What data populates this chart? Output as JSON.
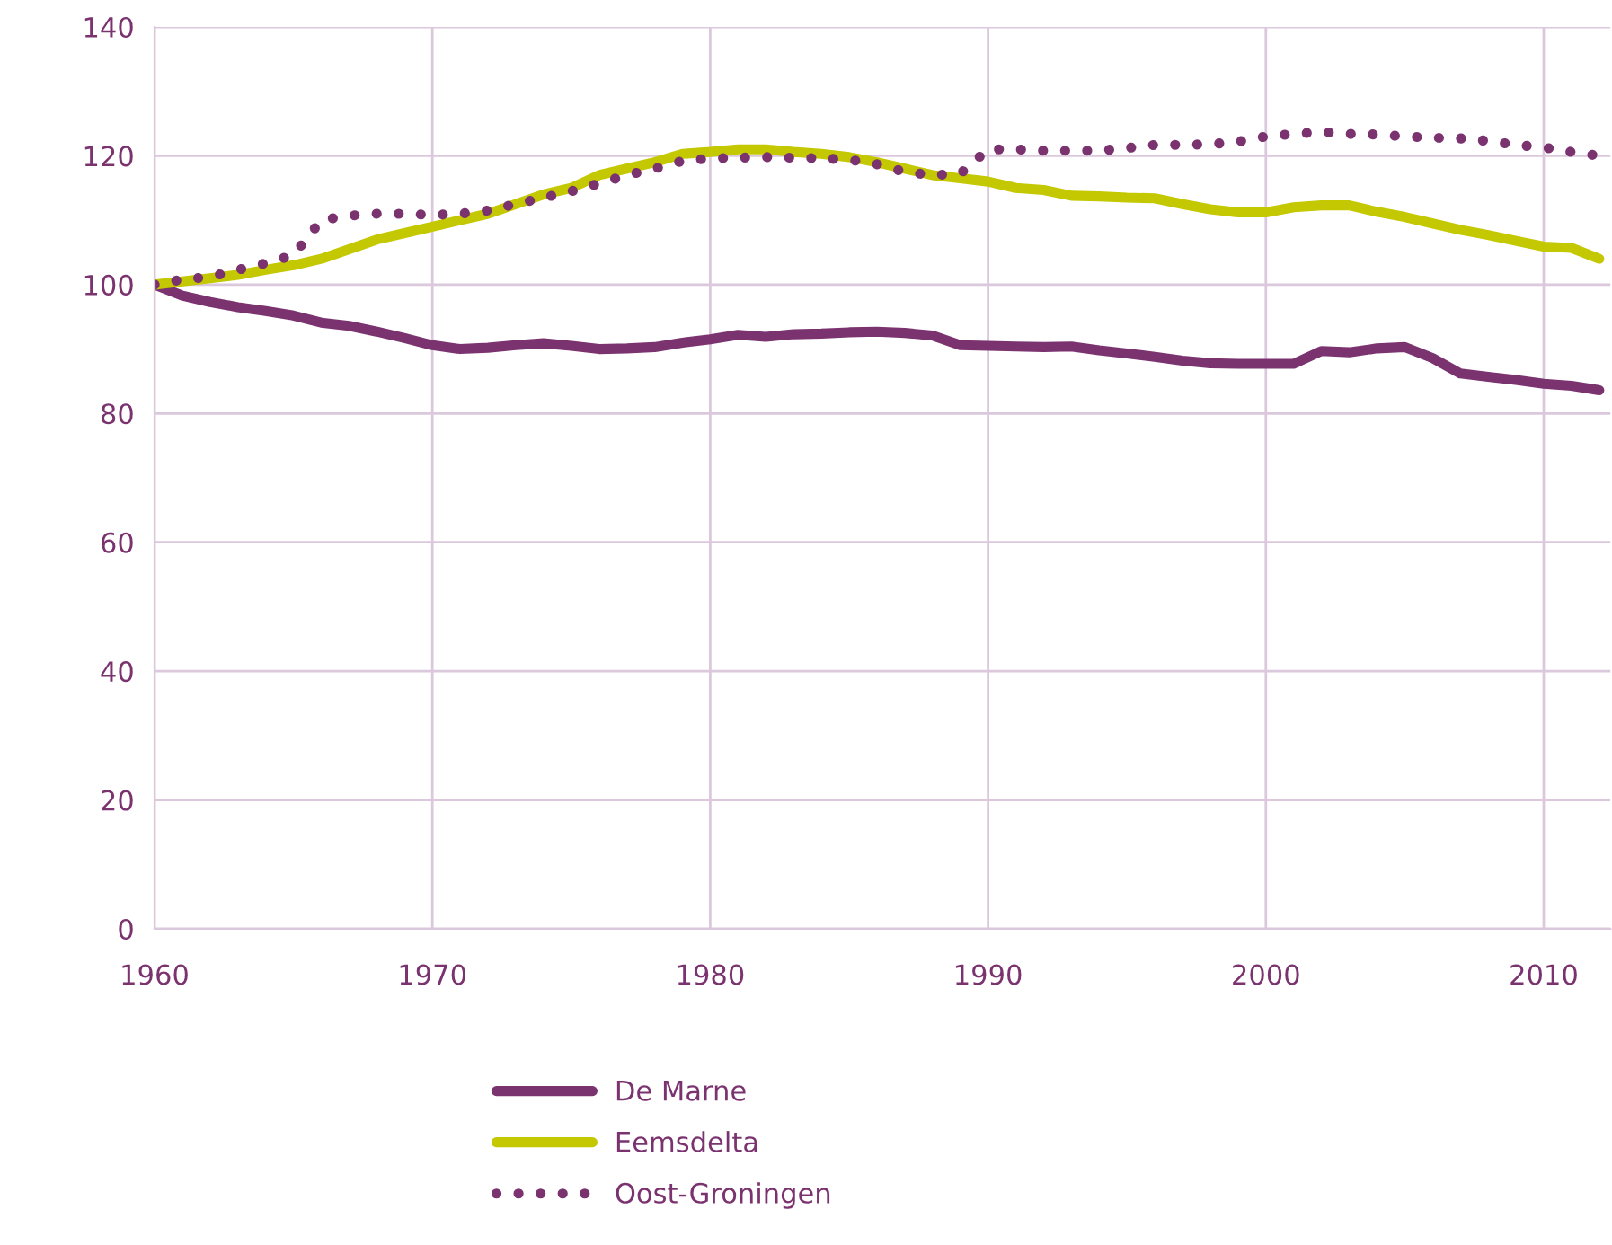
{
  "chart_data": {
    "type": "line",
    "x": [
      1960,
      1961,
      1962,
      1963,
      1964,
      1965,
      1966,
      1967,
      1968,
      1969,
      1970,
      1971,
      1972,
      1973,
      1974,
      1975,
      1976,
      1977,
      1978,
      1979,
      1980,
      1981,
      1982,
      1983,
      1984,
      1985,
      1986,
      1987,
      1988,
      1989,
      1990,
      1991,
      1992,
      1993,
      1994,
      1995,
      1996,
      1997,
      1998,
      1999,
      2000,
      2001,
      2002,
      2003,
      2004,
      2005,
      2006,
      2007,
      2008,
      2009,
      2010,
      2011,
      2012
    ],
    "series": [
      {
        "name": "De Marne",
        "color": "#7b3370",
        "line_style": "solid",
        "values": [
          100,
          98.3,
          97.3,
          96.5,
          95.9,
          95.2,
          94.1,
          93.6,
          92.7,
          91.7,
          90.6,
          90.0,
          90.2,
          90.6,
          90.9,
          90.5,
          90.0,
          90.1,
          90.3,
          91.0,
          91.5,
          92.2,
          91.9,
          92.3,
          92.4,
          92.6,
          92.7,
          92.5,
          92.1,
          90.6,
          90.5,
          90.4,
          90.3,
          90.4,
          89.8,
          89.3,
          88.8,
          88.2,
          87.8,
          87.7,
          87.7,
          87.7,
          89.7,
          89.5,
          90.1,
          90.3,
          88.6,
          86.2,
          85.7,
          85.2,
          84.6,
          84.3,
          83.6
        ]
      },
      {
        "name": "Eemsdelta",
        "color": "#c3c800",
        "line_style": "solid",
        "values": [
          100,
          100.5,
          101,
          101.5,
          102.3,
          103,
          104,
          105.5,
          107,
          108,
          109,
          110,
          111,
          112.5,
          114,
          115,
          117,
          118,
          119,
          120.3,
          120.6,
          121,
          121,
          120.6,
          120.3,
          119.8,
          119,
          118,
          117,
          116.5,
          116,
          115,
          114.7,
          113.8,
          113.7,
          113.5,
          113.4,
          112.5,
          111.7,
          111.2,
          111.2,
          112,
          112.3,
          112.3,
          111.3,
          110.5,
          109.5,
          108.5,
          107.7,
          106.8,
          105.9,
          105.7,
          104
        ]
      },
      {
        "name": "Oost-Groningen",
        "color": "#7b3370",
        "line_style": "dotted",
        "values": [
          100,
          100.8,
          101.2,
          102.3,
          103.3,
          104.6,
          110,
          110.7,
          111,
          111,
          110.8,
          111,
          111.5,
          112.5,
          113.5,
          114.5,
          115.7,
          117,
          118,
          119.2,
          119.6,
          119.7,
          119.8,
          119.7,
          119.6,
          119.4,
          118.7,
          117.5,
          117,
          117.2,
          121,
          121,
          120.8,
          120.8,
          120.8,
          121.2,
          121.7,
          121.7,
          121.8,
          122.2,
          123,
          123.4,
          123.7,
          123.4,
          123.3,
          123,
          122.8,
          122.7,
          122.3,
          121.7,
          121.3,
          120.6,
          120
        ]
      }
    ],
    "xlim": [
      1960,
      2012.4
    ],
    "xticks": [
      1960,
      1970,
      1980,
      1990,
      2000,
      2010
    ],
    "ylim": [
      0,
      140
    ],
    "yticks": [
      0,
      20,
      40,
      60,
      80,
      100,
      120,
      140
    ],
    "grid": true,
    "legend": "bottom"
  }
}
